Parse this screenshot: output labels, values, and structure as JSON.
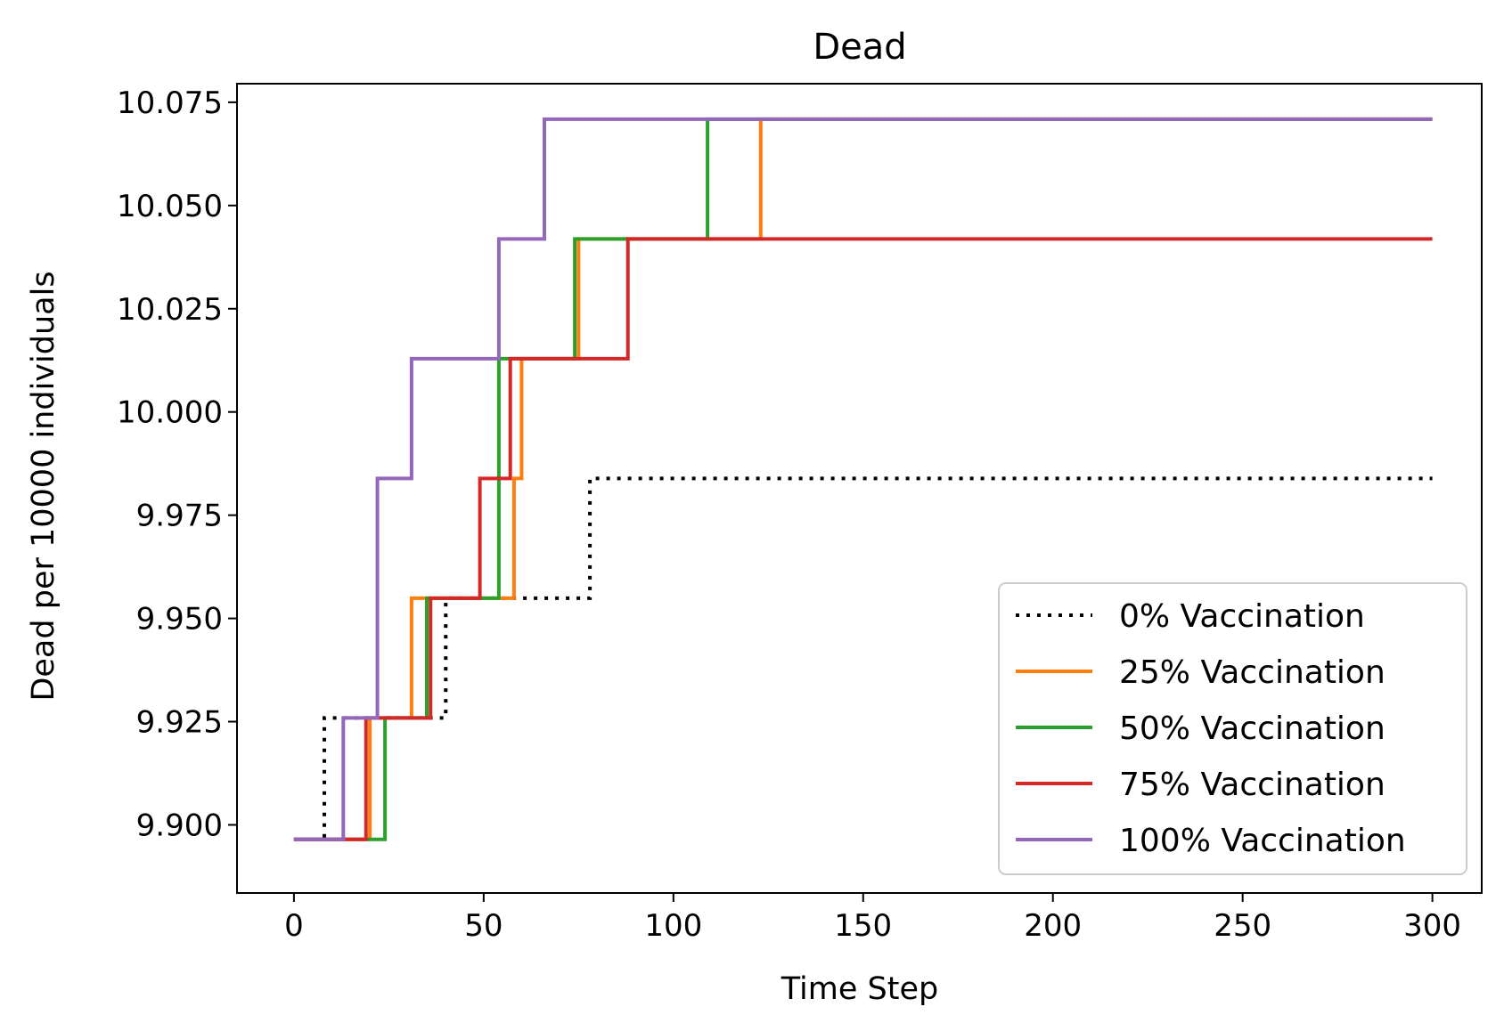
{
  "chart_data": {
    "type": "line",
    "title": "Dead",
    "xlabel": "Time Step",
    "ylabel": "Dead per 10000 individuals",
    "xlim": [
      -15,
      313
    ],
    "ylim": [
      9.8835,
      10.0795
    ],
    "xticks": [
      0,
      50,
      100,
      150,
      200,
      250,
      300
    ],
    "xtick_labels": [
      "0",
      "50",
      "100",
      "150",
      "200",
      "250",
      "300"
    ],
    "yticks": [
      9.9,
      9.925,
      9.95,
      9.975,
      10.0,
      10.025,
      10.05,
      10.075
    ],
    "ytick_labels": [
      "9.900",
      "9.925",
      "9.950",
      "9.975",
      "10.000",
      "10.025",
      "10.050",
      "10.075"
    ],
    "grid": false,
    "legend": "lower-right",
    "x_end": 300,
    "series": [
      {
        "name": "0% Vaccination",
        "color": "#000000",
        "dash": "dotted",
        "steps": [
          [
            0,
            9.8965
          ],
          [
            8,
            9.9259
          ],
          [
            40,
            9.9549
          ],
          [
            78,
            9.9839
          ]
        ]
      },
      {
        "name": "25% Vaccination",
        "color": "#ff7f0e",
        "dash": "solid",
        "steps": [
          [
            0,
            9.8965
          ],
          [
            20,
            9.9259
          ],
          [
            31,
            9.9549
          ],
          [
            58,
            9.9839
          ],
          [
            60,
            10.0129
          ],
          [
            75,
            10.0419
          ],
          [
            123,
            10.0709
          ]
        ]
      },
      {
        "name": "50% Vaccination",
        "color": "#2ca02c",
        "dash": "solid",
        "steps": [
          [
            0,
            9.8965
          ],
          [
            24,
            9.9259
          ],
          [
            35,
            9.9549
          ],
          [
            54,
            10.0129
          ],
          [
            74,
            10.0419
          ],
          [
            109,
            10.0709
          ]
        ]
      },
      {
        "name": "75% Vaccination",
        "color": "#d62728",
        "dash": "solid",
        "steps": [
          [
            0,
            9.8965
          ],
          [
            19,
            9.9259
          ],
          [
            36,
            9.9549
          ],
          [
            49,
            9.9839
          ],
          [
            57,
            10.0129
          ],
          [
            88,
            10.0419
          ]
        ]
      },
      {
        "name": "100% Vaccination",
        "color": "#9467bd",
        "dash": "solid",
        "steps": [
          [
            0,
            9.8965
          ],
          [
            13,
            9.9259
          ],
          [
            22,
            9.9839
          ],
          [
            31,
            10.0129
          ],
          [
            54,
            10.0419
          ],
          [
            66,
            10.0709
          ]
        ]
      }
    ]
  }
}
